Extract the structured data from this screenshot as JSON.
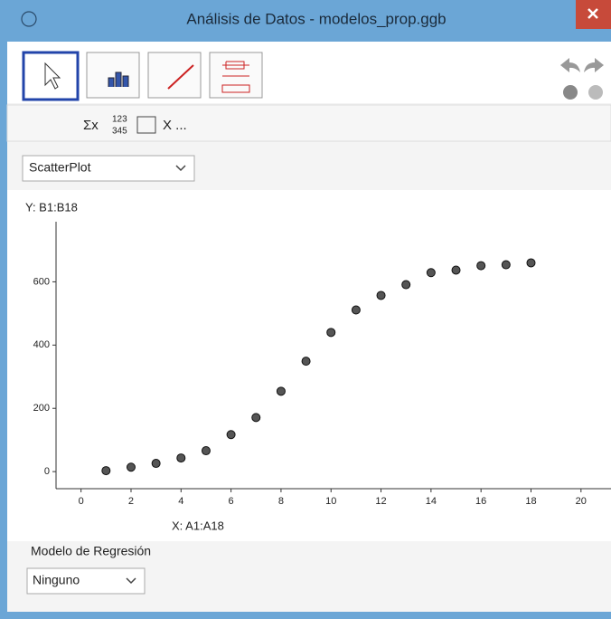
{
  "window": {
    "title": "Análisis de Datos - modelos_prop.ggb"
  },
  "toolbar": {
    "sum": "Σx",
    "num_top": "123",
    "num_bottom": "345",
    "x_more": "X ..."
  },
  "plot_selector": "ScatterPlot",
  "chart_data": {
    "type": "scatter",
    "y_label": "Y:  B1:B18",
    "x_label": "X:  A1:A18",
    "x": [
      1,
      2,
      3,
      4,
      5,
      6,
      7,
      8,
      9,
      10,
      11,
      12,
      13,
      14,
      15,
      16,
      17,
      18
    ],
    "values": [
      3,
      14,
      26,
      43,
      66,
      117,
      171,
      254,
      349,
      440,
      511,
      557,
      591,
      629,
      637,
      651,
      654,
      660
    ],
    "color": "#555555",
    "xlim": [
      -1,
      21.2
    ],
    "ylim": [
      -54,
      790
    ],
    "xticks": [
      0,
      2,
      4,
      6,
      8,
      10,
      12,
      14,
      16,
      18,
      20
    ],
    "yticks": [
      0,
      200,
      400,
      600
    ]
  },
  "regression": {
    "label": "Modelo de Regresión",
    "selected": "Ninguno"
  }
}
